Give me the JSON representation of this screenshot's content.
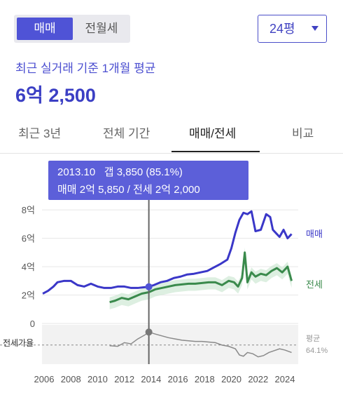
{
  "trade_type": {
    "options": [
      "매매",
      "전월세"
    ],
    "selected": "매매"
  },
  "size_selector": {
    "value": "24평"
  },
  "summary": {
    "caption": "최근 실거래 기준 1개월 평균",
    "price": "6억 2,500"
  },
  "tabs": [
    {
      "label": "최근 3년",
      "active": false
    },
    {
      "label": "전체 기간",
      "active": false
    },
    {
      "label": "매매/전세",
      "active": true
    },
    {
      "label": "비교",
      "active": false
    }
  ],
  "tooltip": {
    "line1": "2013.10   갭 3,850 (85.1%)",
    "line2": "매매 2억 5,850 / 전세 2억 2,000"
  },
  "colors": {
    "accent": "#4f53d6",
    "sale": "#3a37c8",
    "jeonse": "#3a8a4c",
    "ratio": "#8a8a8a",
    "tooltip_bg": "#5c5fd9"
  },
  "chart_data": {
    "type": "line",
    "x_ticks": [
      "2006",
      "2008",
      "2010",
      "2012",
      "2014",
      "2016",
      "2018",
      "2020",
      "2022",
      "2024"
    ],
    "y_ticks": [
      "0",
      "2억",
      "4억",
      "6억",
      "8억"
    ],
    "ylim": [
      0,
      8.8
    ],
    "series": [
      {
        "name": "매매",
        "x": [
          2005.9,
          2006.3,
          2006.7,
          2007.0,
          2007.5,
          2008.0,
          2008.5,
          2009.0,
          2009.5,
          2010.0,
          2010.5,
          2011.0,
          2011.5,
          2012.0,
          2012.5,
          2013.0,
          2013.5,
          2013.83,
          2014.2,
          2014.7,
          2015.2,
          2015.7,
          2016.2,
          2016.7,
          2017.2,
          2017.7,
          2018.2,
          2018.7,
          2019.2,
          2019.7,
          2020.0,
          2020.3,
          2020.6,
          2020.9,
          2021.2,
          2021.5,
          2021.8,
          2022.2,
          2022.6,
          2022.9,
          2023.1,
          2023.3,
          2023.6,
          2023.9,
          2024.2,
          2024.5
        ],
        "values": [
          2.1,
          2.3,
          2.6,
          2.9,
          3.0,
          3.0,
          2.7,
          2.6,
          2.8,
          2.6,
          2.5,
          2.5,
          2.6,
          2.6,
          2.5,
          2.5,
          2.55,
          2.585,
          2.7,
          2.9,
          3.0,
          3.2,
          3.3,
          3.45,
          3.5,
          3.6,
          3.7,
          3.95,
          4.2,
          4.5,
          5.3,
          6.4,
          7.3,
          7.8,
          7.7,
          7.9,
          6.5,
          6.6,
          7.7,
          7.5,
          6.6,
          6.4,
          6.1,
          6.6,
          6.0,
          6.3
        ]
      },
      {
        "name": "전세",
        "x": [
          2010.9,
          2011.3,
          2011.8,
          2012.3,
          2012.8,
          2013.3,
          2013.83,
          2014.3,
          2014.8,
          2015.3,
          2015.8,
          2016.3,
          2016.8,
          2017.3,
          2017.8,
          2018.3,
          2018.8,
          2019.3,
          2019.8,
          2020.2,
          2020.5,
          2020.8,
          2021.0,
          2021.2,
          2021.5,
          2021.8,
          2022.2,
          2022.6,
          2023.0,
          2023.4,
          2023.8,
          2024.2,
          2024.5
        ],
        "values": [
          1.5,
          1.6,
          1.8,
          1.7,
          1.9,
          2.1,
          2.2,
          2.4,
          2.5,
          2.6,
          2.7,
          2.75,
          2.8,
          2.8,
          2.85,
          2.9,
          2.9,
          2.7,
          3.0,
          2.9,
          2.6,
          3.2,
          5.0,
          2.9,
          3.6,
          3.3,
          3.5,
          3.4,
          3.7,
          3.9,
          3.6,
          4.0,
          3.0
        ]
      }
    ],
    "ratio_series": {
      "label": "전세가율",
      "average_label": "평균",
      "average_value": "64.1%",
      "x": [
        2010.9,
        2011.5,
        2012.0,
        2012.5,
        2013.0,
        2013.5,
        2013.83,
        2014.3,
        2014.8,
        2015.3,
        2015.8,
        2016.3,
        2016.8,
        2017.3,
        2017.8,
        2018.3,
        2018.8,
        2019.3,
        2019.8,
        2020.3,
        2020.6,
        2020.9,
        2021.2,
        2021.6,
        2022.0,
        2022.4,
        2022.8,
        2023.2,
        2023.6,
        2024.0,
        2024.5
      ],
      "values": [
        63,
        62,
        68,
        66,
        74,
        80,
        85.1,
        82,
        79,
        76,
        74,
        72,
        71,
        70,
        70,
        69,
        68,
        64,
        62,
        58,
        48,
        46,
        52,
        50,
        45,
        47,
        52,
        55,
        58,
        56,
        52
      ]
    }
  }
}
